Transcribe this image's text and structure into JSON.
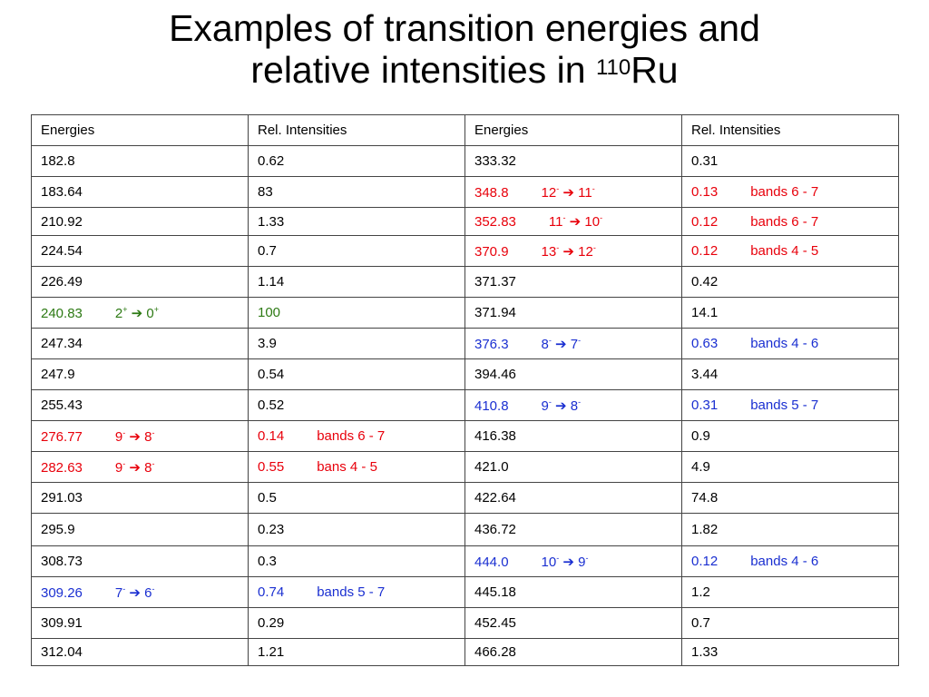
{
  "title": {
    "line1": "Examples of transition energies and",
    "line2_pre": "relative intensities in ",
    "isotope_mass": "110",
    "element": "Ru"
  },
  "colors": {
    "red": "#e8000b",
    "blue": "#1a2fd1",
    "green": "#2d7a14"
  },
  "header": [
    "Energies",
    "Rel. Intensities",
    "Energies",
    "Rel. Intensities"
  ],
  "rows": [
    {
      "h": 34,
      "cells": [
        {
          "v": "182.8"
        },
        {
          "v": "0.62"
        },
        {
          "v": "333.32"
        },
        {
          "v": "0.31"
        }
      ]
    },
    {
      "h": 34,
      "cells": [
        {
          "v": "183.64"
        },
        {
          "v": "83"
        },
        {
          "v": "348.8",
          "ji": "12",
          "jf": "11",
          "pi": "-",
          "pf": "-",
          "c": "red"
        },
        {
          "v": "0.13",
          "note": "bands 6 - 7",
          "c": "red"
        }
      ]
    },
    {
      "h": 31,
      "cells": [
        {
          "v": "210.92"
        },
        {
          "v": "1.33"
        },
        {
          "v": "352.83",
          "ji": "11",
          "jf": "10",
          "pi": "-",
          "pf": "-",
          "c": "red"
        },
        {
          "v": "0.12",
          "note": "bands 6 - 7",
          "c": "red"
        }
      ]
    },
    {
      "h": 34,
      "cells": [
        {
          "v": "224.54"
        },
        {
          "v": "0.7"
        },
        {
          "v": "370.9",
          "ji": "13",
          "jf": "12",
          "pi": "-",
          "pf": "-",
          "c": "red"
        },
        {
          "v": "0.12",
          "note": "bands 4 - 5",
          "c": "red"
        }
      ]
    },
    {
      "h": 34,
      "cells": [
        {
          "v": "226.49"
        },
        {
          "v": "1.14"
        },
        {
          "v": "371.37"
        },
        {
          "v": "0.42"
        }
      ]
    },
    {
      "h": 34,
      "cells": [
        {
          "v": "240.83",
          "ji": "2",
          "jf": "0",
          "pi": "+",
          "pf": "+",
          "c": "green"
        },
        {
          "v": "100",
          "c": "green"
        },
        {
          "v": "371.94"
        },
        {
          "v": "14.1"
        }
      ]
    },
    {
      "h": 34,
      "cells": [
        {
          "v": "247.34"
        },
        {
          "v": "3.9"
        },
        {
          "v": "376.3",
          "ji": "8",
          "jf": "7",
          "pi": "-",
          "pf": "-",
          "c": "blue"
        },
        {
          "v": "0.63",
          "note": "bands 4 - 6",
          "c": "blue"
        }
      ]
    },
    {
      "h": 34,
      "cells": [
        {
          "v": "247.9"
        },
        {
          "v": "0.54"
        },
        {
          "v": "394.46"
        },
        {
          "v": "3.44"
        }
      ]
    },
    {
      "h": 34,
      "cells": [
        {
          "v": "255.43"
        },
        {
          "v": "0.52"
        },
        {
          "v": "410.8",
          "ji": "9",
          "jf": "8",
          "pi": "-",
          "pf": "-",
          "c": "blue"
        },
        {
          "v": "0.31",
          "note": "bands 5 - 7",
          "c": "blue"
        }
      ]
    },
    {
      "h": 34,
      "cells": [
        {
          "v": "276.77",
          "ji": "9",
          "jf": "8",
          "pi": "-",
          "pf": "-",
          "c": "red"
        },
        {
          "v": "0.14",
          "note": "bands 6 - 7",
          "c": "red"
        },
        {
          "v": "416.38"
        },
        {
          "v": "0.9"
        }
      ]
    },
    {
      "h": 34,
      "cells": [
        {
          "v": "282.63",
          "ji": "9",
          "jf": "8",
          "pi": "-",
          "pf": "-",
          "c": "red"
        },
        {
          "v": "0.55",
          "note": "bans 4 - 5",
          "c": "red"
        },
        {
          "v": "421.0"
        },
        {
          "v": "4.9"
        }
      ]
    },
    {
      "h": 34,
      "cells": [
        {
          "v": "291.03"
        },
        {
          "v": "0.5"
        },
        {
          "v": "422.64"
        },
        {
          "v": "74.8"
        }
      ]
    },
    {
      "h": 36,
      "cells": [
        {
          "v": "295.9"
        },
        {
          "v": "0.23"
        },
        {
          "v": "436.72"
        },
        {
          "v": "1.82"
        }
      ]
    },
    {
      "h": 34,
      "cells": [
        {
          "v": "308.73"
        },
        {
          "v": "0.3"
        },
        {
          "v": "444.0",
          "ji": "10",
          "jf": "9",
          "pi": "-",
          "pf": "-",
          "c": "blue"
        },
        {
          "v": "0.12",
          "note": "bands 4 - 6",
          "c": "blue"
        }
      ]
    },
    {
      "h": 34,
      "cells": [
        {
          "v": "309.26",
          "ji": "7",
          "jf": "6",
          "pi": "-",
          "pf": "-",
          "c": "blue"
        },
        {
          "v": "0.74",
          "note": "bands 5 - 7",
          "c": "blue"
        },
        {
          "v": "445.18"
        },
        {
          "v": "1.2"
        }
      ]
    },
    {
      "h": 34,
      "cells": [
        {
          "v": "309.91"
        },
        {
          "v": "0.29"
        },
        {
          "v": "452.45"
        },
        {
          "v": "0.7"
        }
      ]
    },
    {
      "h": 30,
      "cells": [
        {
          "v": "312.04"
        },
        {
          "v": "1.21"
        },
        {
          "v": "466.28"
        },
        {
          "v": "1.33"
        }
      ]
    }
  ]
}
